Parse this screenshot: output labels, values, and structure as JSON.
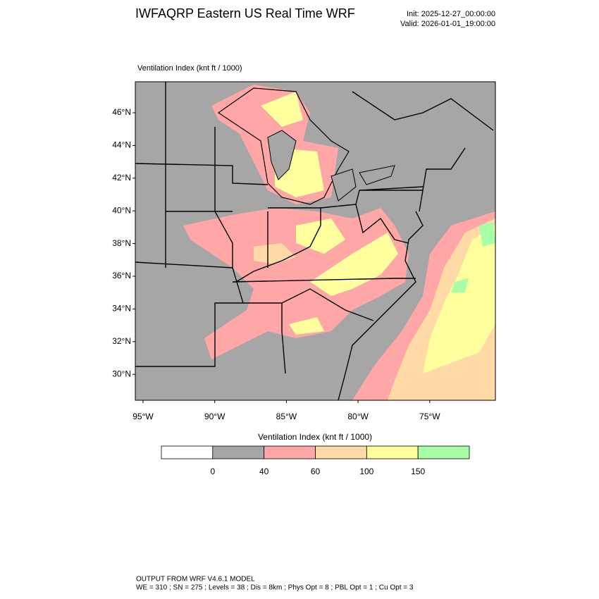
{
  "header": {
    "title": "IWFAQRP Eastern US Real Time WRF",
    "init": "Init: 2025-12-27_00:00:00",
    "valid": "Valid: 2026-01-01_19:00:00"
  },
  "map": {
    "subtitle": "Ventilation Index   (knt ft / 1000)",
    "lat_labels": [
      "46°N",
      "44°N",
      "42°N",
      "40°N",
      "38°N",
      "36°N",
      "34°N",
      "32°N",
      "30°N"
    ],
    "lon_labels": [
      "95°W",
      "90°W",
      "85°W",
      "80°W",
      "75°W"
    ]
  },
  "colorbar": {
    "title": "Ventilation Index  (knt ft / 1000)",
    "levels": [
      0,
      40,
      60,
      100,
      150
    ],
    "colors": [
      "#ffffff",
      "#a6a6a6",
      "#ffa6a6",
      "#ffd9a6",
      "#ffff9e",
      "#a6ffa6"
    ]
  },
  "footer": {
    "line1": "OUTPUT FROM WRF V4.6.1 MODEL",
    "line2": "WE = 310 ; SN = 275 ; Levels = 38 ; Dis = 8km ; Phys Opt = 8 ; PBL Opt = 1 ; Cu Opt = 3"
  }
}
